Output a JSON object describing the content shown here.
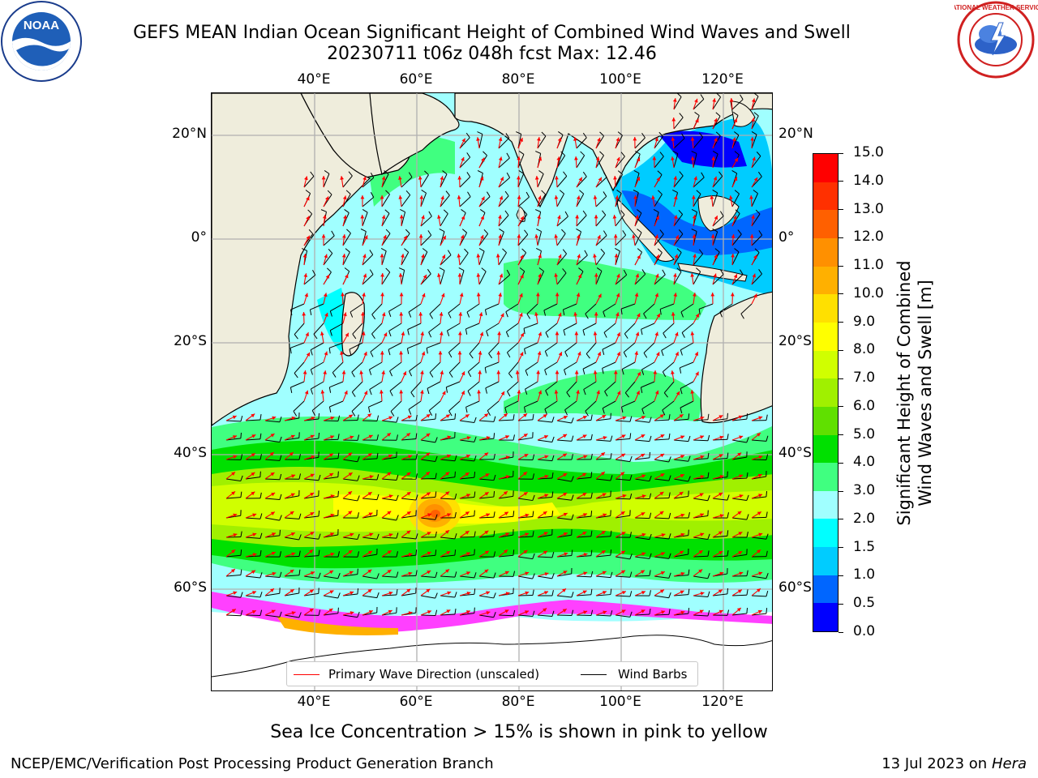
{
  "title": {
    "line1": "GEFS MEAN Indian Ocean Significant Height of Combined Wind Waves and Swell",
    "line2": "20230711 t06z 048h fcst   Max: 12.46"
  },
  "logos": {
    "left": {
      "name": "noaa-logo",
      "text": "NOAA"
    },
    "right": {
      "name": "nws-logo",
      "text": "NATIONAL WEATHER SERVICE"
    }
  },
  "map": {
    "lon_labels": [
      "40°E",
      "60°E",
      "80°E",
      "100°E",
      "120°E"
    ],
    "lat_labels": [
      "20°N",
      "0°",
      "20°S",
      "40°S",
      "60°S"
    ],
    "legend": {
      "wave": "Primary Wave Direction (unscaled)",
      "wind": "Wind Barbs"
    }
  },
  "colorbar": {
    "label_line1": "Significant Height of Combined",
    "label_line2": "Wind Waves and Swell [m]",
    "ticks": [
      "0.0",
      "0.5",
      "1.0",
      "1.5",
      "2.0",
      "3.0",
      "4.0",
      "5.0",
      "6.0",
      "7.0",
      "8.0",
      "9.0",
      "10.0",
      "11.0",
      "12.0",
      "13.0",
      "14.0",
      "15.0"
    ],
    "colors": [
      "#0000ff",
      "#0066ff",
      "#00ccff",
      "#00ffff",
      "#a0ffff",
      "#40ff80",
      "#00e000",
      "#60e000",
      "#a0f000",
      "#d0ff00",
      "#ffff00",
      "#ffe000",
      "#ffb000",
      "#ff9000",
      "#ff6000",
      "#ff3000",
      "#ff0000"
    ]
  },
  "colors": {
    "land": "#efeddc",
    "grid": "#b0b0b0",
    "wave_arrow": "#ff0000",
    "wind_barb": "#000000"
  },
  "caption": "Sea Ice Concentration > 15% is shown in pink to yellow",
  "footer": {
    "left": "NCEP/EMC/Verification Post Processing Product Generation Branch",
    "date": "13 Jul 2023 on",
    "host": "Hera"
  }
}
